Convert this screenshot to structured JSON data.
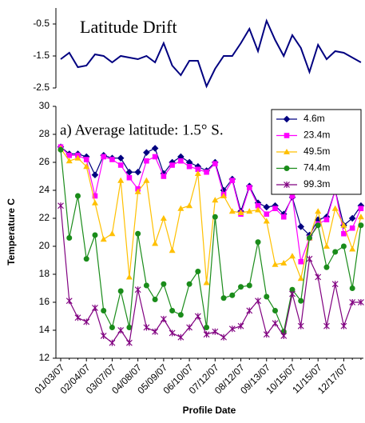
{
  "chart_data": [
    {
      "type": "line",
      "title": "Latitude Drift",
      "color": "#000080",
      "values": [
        -1.6,
        -1.4,
        -1.85,
        -1.8,
        -1.45,
        -1.5,
        -1.7,
        -1.5,
        -1.55,
        -1.6,
        -1.5,
        -1.7,
        -1.1,
        -1.8,
        -2.1,
        -1.65,
        -1.65,
        -2.45,
        -1.9,
        -1.5,
        -1.5,
        -1.1,
        -0.65,
        -1.35,
        -0.4,
        -1.0,
        -1.5,
        -0.85,
        -1.25,
        -2.0,
        -1.15,
        -1.6,
        -1.35,
        -1.4,
        -1.55,
        -1.7
      ],
      "ylim": [
        -2.5,
        0
      ],
      "yticks": [
        -2.5,
        -1.5,
        -0.5
      ]
    },
    {
      "type": "line",
      "annotation": "a) Average latitude: 1.5° S.",
      "x_label": "Profile Date",
      "y_label": "Temperature C",
      "categories": [
        "01/03/07",
        null,
        null,
        "02/04/07",
        null,
        null,
        "03/07/07",
        null,
        null,
        "04/08/07",
        null,
        null,
        "05/09/07",
        null,
        null,
        "06/10/07",
        null,
        null,
        "07/12/07",
        null,
        null,
        "08/12/07",
        null,
        null,
        "09/13/07",
        null,
        null,
        "10/15/07",
        null,
        null,
        "11/15/07",
        null,
        null,
        "12/17/07",
        null,
        null
      ],
      "series": [
        {
          "name": "4.6m",
          "color": "#000080",
          "marker": "diamond",
          "values": [
            27.1,
            26.6,
            26.6,
            26.4,
            25.1,
            26.5,
            26.3,
            26.3,
            25.3,
            25.3,
            26.7,
            27.0,
            25.2,
            26.0,
            26.4,
            26.0,
            25.7,
            25.4,
            26.0,
            24.0,
            24.8,
            22.5,
            24.3,
            23.1,
            22.8,
            22.9,
            22.3,
            23.5,
            21.4,
            20.8,
            21.9,
            22.1,
            24.0,
            21.5,
            22.0,
            22.9
          ]
        },
        {
          "name": "23.4m",
          "color": "#ff00ff",
          "marker": "square",
          "values": [
            27.1,
            26.5,
            26.5,
            26.2,
            23.6,
            26.4,
            26.2,
            25.8,
            24.9,
            24.1,
            26.1,
            26.4,
            25.0,
            25.8,
            26.1,
            25.7,
            25.5,
            25.3,
            25.9,
            23.7,
            24.7,
            22.3,
            24.2,
            22.9,
            22.3,
            22.7,
            22.1,
            23.6,
            18.9,
            20.6,
            21.6,
            21.9,
            24.0,
            20.9,
            21.3,
            22.7
          ]
        },
        {
          "name": "49.5m",
          "color": "#ffc000",
          "marker": "triangle",
          "values": [
            27.0,
            26.1,
            26.3,
            25.7,
            23.1,
            20.5,
            20.9,
            24.7,
            17.8,
            23.9,
            24.7,
            20.2,
            22.0,
            19.7,
            22.7,
            22.9,
            25.2,
            17.4,
            23.3,
            23.6,
            22.5,
            22.4,
            22.5,
            22.6,
            21.8,
            18.7,
            18.8,
            19.3,
            17.7,
            20.6,
            22.5,
            20.0,
            22.7,
            21.5,
            19.8,
            22.1
          ]
        },
        {
          "name": "74.4m",
          "color": "#1a8c1a",
          "marker": "circle",
          "values": [
            26.9,
            20.6,
            23.6,
            19.1,
            20.8,
            15.4,
            14.2,
            16.8,
            14.2,
            20.9,
            17.2,
            16.2,
            17.3,
            15.4,
            15.1,
            17.3,
            18.2,
            14.2,
            22.1,
            16.3,
            16.5,
            17.1,
            17.2,
            20.3,
            16.4,
            15.4,
            13.9,
            16.9,
            16.1,
            20.6,
            21.5,
            18.5,
            19.6,
            20.0,
            17.0,
            21.5
          ]
        },
        {
          "name": "99.3m",
          "color": "#800080",
          "marker": "x",
          "values": [
            22.9,
            16.1,
            14.9,
            14.6,
            15.6,
            13.6,
            13.1,
            14.0,
            13.1,
            16.9,
            14.2,
            13.9,
            14.8,
            13.8,
            13.5,
            14.2,
            15.0,
            13.7,
            13.9,
            13.5,
            14.1,
            14.3,
            15.4,
            16.1,
            13.7,
            14.5,
            13.6,
            16.6,
            14.3,
            19.1,
            17.8,
            14.3,
            17.3,
            14.3,
            16.0,
            16.0
          ]
        }
      ],
      "ylim": [
        12,
        30
      ],
      "yticks": [
        12,
        14,
        16,
        18,
        20,
        22,
        24,
        26,
        28,
        30
      ],
      "legend": "upper right"
    }
  ]
}
